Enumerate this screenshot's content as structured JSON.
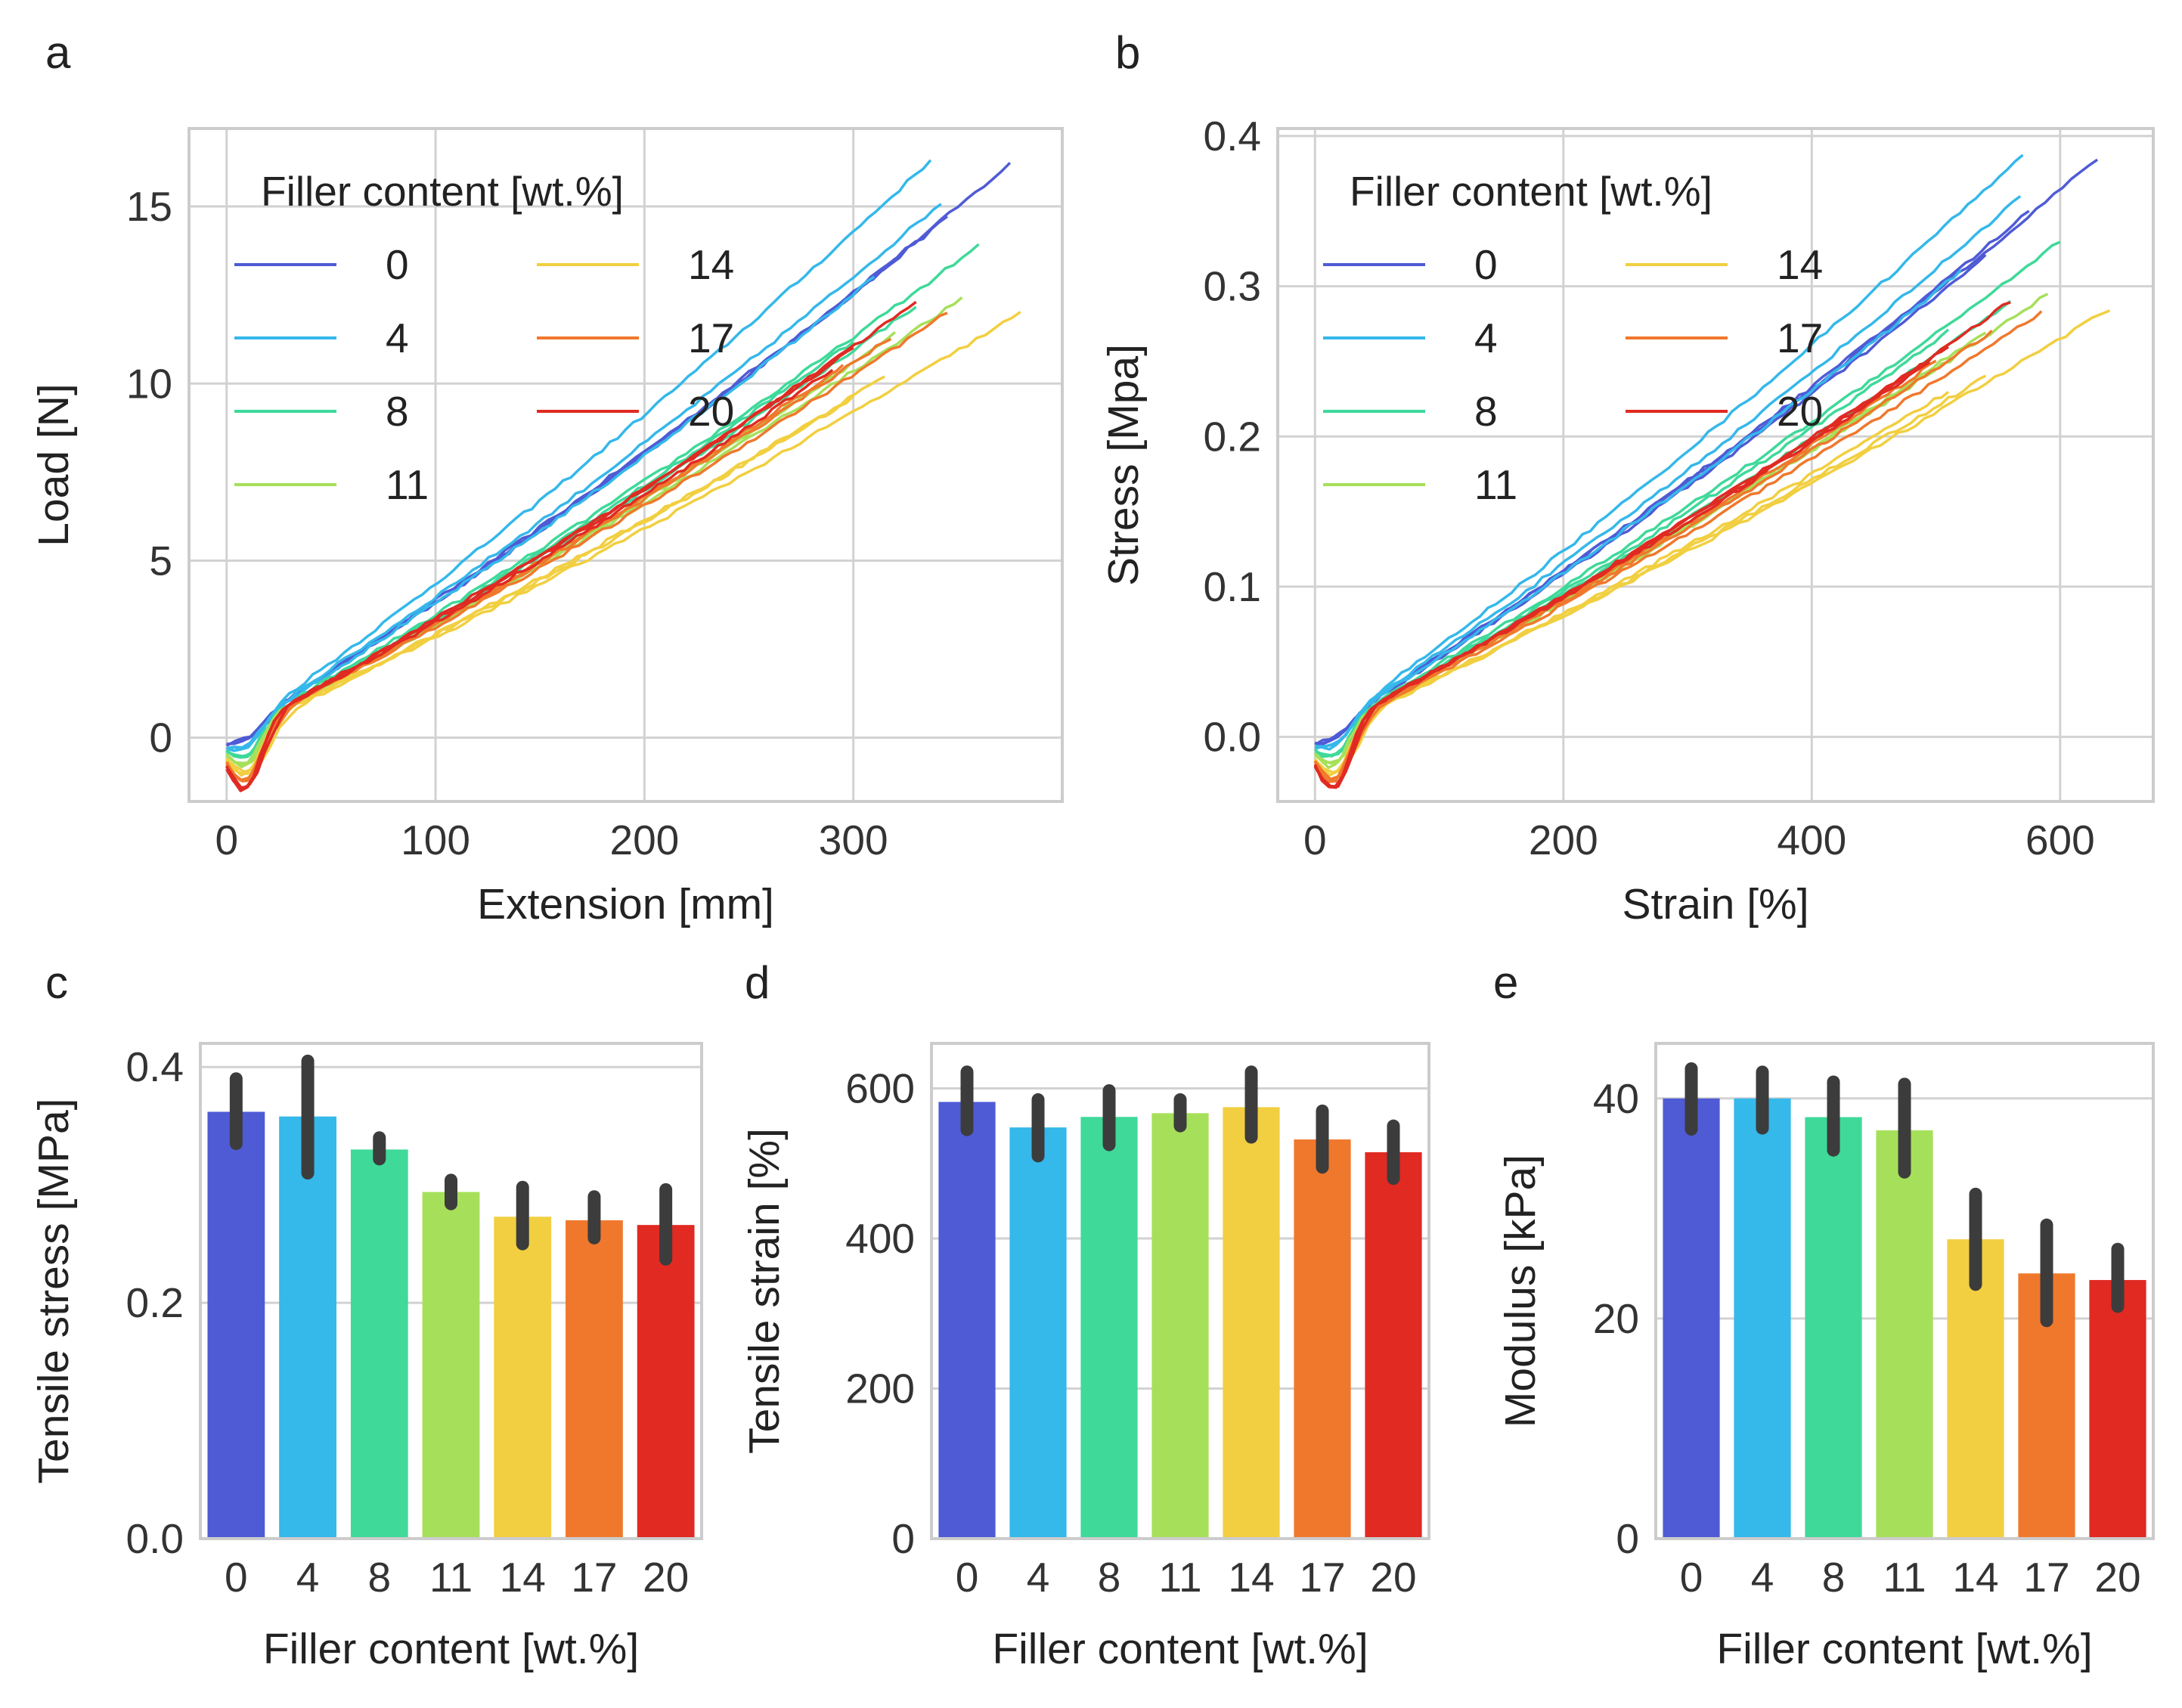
{
  "panels": {
    "a": "a",
    "b": "b",
    "c": "c",
    "d": "d",
    "e": "e"
  },
  "legend": {
    "title": "Filler content [wt.%]",
    "entries": [
      {
        "label": "0",
        "color": "#4f5bd5"
      },
      {
        "label": "4",
        "color": "#35b8ea"
      },
      {
        "label": "8",
        "color": "#3fd99a"
      },
      {
        "label": "11",
        "color": "#a6e05a"
      },
      {
        "label": "14",
        "color": "#f1cf40"
      },
      {
        "label": "17",
        "color": "#f0782c"
      },
      {
        "label": "20",
        "color": "#e02a22"
      }
    ]
  },
  "chart_data": [
    {
      "id": "a",
      "type": "line",
      "title": "",
      "xlabel": "Extension [mm]",
      "ylabel": "Load [N]",
      "xlim": [
        -18,
        400
      ],
      "ylim": [
        -1.8,
        17.2
      ],
      "xticks": [
        0,
        100,
        200,
        300
      ],
      "yticks": [
        0,
        5,
        10,
        15
      ],
      "grid": true,
      "legend_position": "top-left",
      "series": [
        {
          "name": "0",
          "end_x": 375,
          "end_y": 16.2,
          "runs": [
            [
              375,
              16.2
            ],
            [
              345,
              14.7
            ],
            [
              320,
              13.5
            ]
          ]
        },
        {
          "name": "4",
          "end_x": 337,
          "end_y": 16.3,
          "runs": [
            [
              337,
              16.3
            ],
            [
              342,
              15.1
            ],
            [
              310,
              13.0
            ]
          ]
        },
        {
          "name": "8",
          "end_x": 360,
          "end_y": 13.9,
          "runs": [
            [
              360,
              13.9
            ],
            [
              330,
              12.2
            ],
            [
              300,
              11.2
            ]
          ]
        },
        {
          "name": "11",
          "end_x": 352,
          "end_y": 12.4,
          "runs": [
            [
              352,
              12.4
            ],
            [
              320,
              11.4
            ],
            [
              290,
              10.2
            ]
          ]
        },
        {
          "name": "14",
          "end_x": 380,
          "end_y": 12.0,
          "runs": [
            [
              380,
              12.0
            ],
            [
              315,
              10.2
            ],
            [
              300,
              9.6
            ]
          ]
        },
        {
          "name": "17",
          "end_x": 345,
          "end_y": 12.0,
          "runs": [
            [
              345,
              12.0
            ],
            [
              318,
              11.3
            ],
            [
              295,
              10.5
            ]
          ]
        },
        {
          "name": "20",
          "end_x": 330,
          "end_y": 12.3,
          "runs": [
            [
              330,
              12.3
            ],
            [
              300,
              11.0
            ],
            [
              290,
              10.4
            ]
          ]
        }
      ]
    },
    {
      "id": "b",
      "type": "line",
      "title": "",
      "xlabel": "Strain [%]",
      "ylabel": "Stress [Mpa]",
      "xlim": [
        -30,
        675
      ],
      "ylim": [
        -0.043,
        0.405
      ],
      "xticks": [
        0,
        200,
        400,
        600
      ],
      "yticks": [
        0.0,
        0.1,
        0.2,
        0.3,
        0.4
      ],
      "ytick_labels": [
        "0.0",
        "0.1",
        "0.2",
        "0.3",
        "0.4"
      ],
      "grid": true,
      "legend_position": "top-left",
      "series": [
        {
          "name": "0",
          "end_x": 630,
          "end_y": 0.385,
          "runs": [
            [
              630,
              0.385
            ],
            [
              575,
              0.35
            ],
            [
              540,
              0.32
            ]
          ]
        },
        {
          "name": "4",
          "end_x": 570,
          "end_y": 0.388,
          "runs": [
            [
              570,
              0.388
            ],
            [
              568,
              0.36
            ],
            [
              520,
              0.31
            ]
          ]
        },
        {
          "name": "8",
          "end_x": 600,
          "end_y": 0.33,
          "runs": [
            [
              600,
              0.33
            ],
            [
              560,
              0.29
            ],
            [
              510,
              0.27
            ]
          ]
        },
        {
          "name": "11",
          "end_x": 590,
          "end_y": 0.295,
          "runs": [
            [
              590,
              0.295
            ],
            [
              540,
              0.27
            ],
            [
              490,
              0.24
            ]
          ]
        },
        {
          "name": "14",
          "end_x": 640,
          "end_y": 0.285,
          "runs": [
            [
              640,
              0.285
            ],
            [
              540,
              0.24
            ],
            [
              510,
              0.23
            ]
          ]
        },
        {
          "name": "17",
          "end_x": 585,
          "end_y": 0.283,
          "runs": [
            [
              585,
              0.283
            ],
            [
              545,
              0.27
            ],
            [
              500,
              0.25
            ]
          ]
        },
        {
          "name": "20",
          "end_x": 560,
          "end_y": 0.29,
          "runs": [
            [
              560,
              0.29
            ],
            [
              510,
              0.26
            ],
            [
              495,
              0.25
            ]
          ]
        }
      ]
    },
    {
      "id": "c",
      "type": "bar",
      "title": "",
      "xlabel": "Filler content [wt.%]",
      "ylabel": "Tensile stress [MPa]",
      "categories": [
        "0",
        "4",
        "8",
        "11",
        "14",
        "17",
        "20"
      ],
      "values": [
        0.362,
        0.358,
        0.33,
        0.294,
        0.273,
        0.27,
        0.266
      ],
      "err_low": [
        0.335,
        0.31,
        0.322,
        0.284,
        0.25,
        0.255,
        0.237
      ],
      "err_high": [
        0.39,
        0.405,
        0.34,
        0.304,
        0.298,
        0.29,
        0.296
      ],
      "ylim": [
        0,
        0.42
      ],
      "yticks": [
        0.0,
        0.2,
        0.4
      ],
      "ytick_labels": [
        "0.0",
        "0.2",
        "0.4"
      ],
      "grid": true
    },
    {
      "id": "d",
      "type": "bar",
      "title": "",
      "xlabel": "Filler content [wt.%]",
      "ylabel": "Tensile strain [%]",
      "categories": [
        "0",
        "4",
        "8",
        "11",
        "14",
        "17",
        "20"
      ],
      "values": [
        582,
        548,
        562,
        567,
        575,
        532,
        515
      ],
      "err_low": [
        545,
        510,
        525,
        550,
        535,
        495,
        480
      ],
      "err_high": [
        622,
        585,
        597,
        585,
        622,
        570,
        550
      ],
      "ylim": [
        0,
        660
      ],
      "yticks": [
        0,
        200,
        400,
        600
      ],
      "grid": true
    },
    {
      "id": "e",
      "type": "bar",
      "title": "",
      "xlabel": "Filler content [wt.%]",
      "ylabel": "Modulus [kPa]",
      "categories": [
        "0",
        "4",
        "8",
        "11",
        "14",
        "17",
        "20"
      ],
      "values": [
        40.0,
        40.0,
        38.3,
        37.1,
        27.2,
        24.1,
        23.5
      ],
      "err_low": [
        37.2,
        37.3,
        35.3,
        33.3,
        23.1,
        19.8,
        21.1
      ],
      "err_high": [
        42.7,
        42.4,
        41.5,
        41.3,
        31.3,
        28.5,
        26.3
      ],
      "ylim": [
        0,
        45
      ],
      "yticks": [
        0,
        20,
        40
      ],
      "grid": true
    }
  ]
}
